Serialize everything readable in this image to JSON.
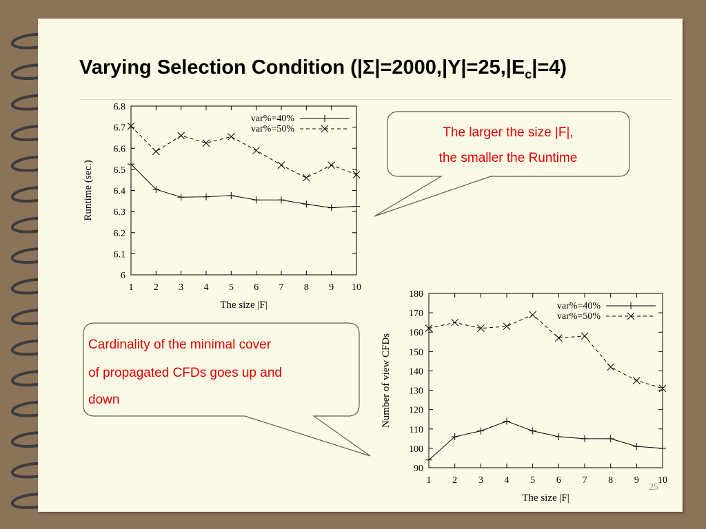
{
  "slide": {
    "title_main": "Varying Selection Condition (|Σ|=2000,|Y|=25,|E",
    "title_sub": "c",
    "title_tail": "|=4)",
    "page_number": "25"
  },
  "callouts": {
    "top_line1": "The larger the size |F|,",
    "top_line2": "the smaller the Runtime",
    "bottom_line1": "Cardinality of the minimal cover",
    "bottom_line2": "of propagated CFDs goes up and",
    "bottom_line3": "down"
  },
  "colors": {
    "background": "#8b7359",
    "slide": "#fafae6",
    "callout_text": "#e00000",
    "callout_fill": "#fafae6"
  },
  "chart_data": [
    {
      "type": "line",
      "xlabel": "The size |F|",
      "ylabel": "Runtime (sec.)",
      "x": [
        1,
        2,
        3,
        4,
        5,
        6,
        7,
        8,
        9,
        10
      ],
      "xlim": [
        1,
        10
      ],
      "ylim": [
        6,
        6.8
      ],
      "xticks": [
        "1",
        "2",
        "3",
        "4",
        "5",
        "6",
        "7",
        "8",
        "9",
        "10"
      ],
      "yticks": [
        "6",
        "6.1",
        "6.2",
        "6.3",
        "6.4",
        "6.5",
        "6.6",
        "6.7",
        "6.8"
      ],
      "legend": "top-right",
      "grid": false,
      "series": [
        {
          "name": "var%=40%",
          "marker": "plus",
          "dash": "solid",
          "values": [
            6.525,
            6.405,
            6.368,
            6.37,
            6.376,
            6.355,
            6.355,
            6.335,
            6.318,
            6.325
          ]
        },
        {
          "name": "var%=50%",
          "marker": "cross",
          "dash": "dashed",
          "values": [
            6.705,
            6.585,
            6.66,
            6.625,
            6.655,
            6.59,
            6.52,
            6.46,
            6.52,
            6.475
          ]
        }
      ]
    },
    {
      "type": "line",
      "xlabel": "The size |F|",
      "ylabel": "Number of view CFDs",
      "x": [
        1,
        2,
        3,
        4,
        5,
        6,
        7,
        8,
        9,
        10
      ],
      "xlim": [
        1,
        10
      ],
      "ylim": [
        90,
        180
      ],
      "xticks": [
        "1",
        "2",
        "3",
        "4",
        "5",
        "6",
        "7",
        "8",
        "9",
        "10"
      ],
      "yticks": [
        "90",
        "100",
        "110",
        "120",
        "130",
        "140",
        "150",
        "160",
        "170",
        "180"
      ],
      "legend": "top-right",
      "grid": false,
      "series": [
        {
          "name": "var%=40%",
          "marker": "plus",
          "dash": "solid",
          "values": [
            94,
            106,
            109,
            114,
            109,
            106,
            105,
            105,
            101,
            100
          ]
        },
        {
          "name": "var%=50%",
          "marker": "cross",
          "dash": "dashed",
          "values": [
            162,
            165,
            162,
            163,
            169,
            157,
            158,
            142,
            135,
            131
          ]
        }
      ]
    }
  ]
}
